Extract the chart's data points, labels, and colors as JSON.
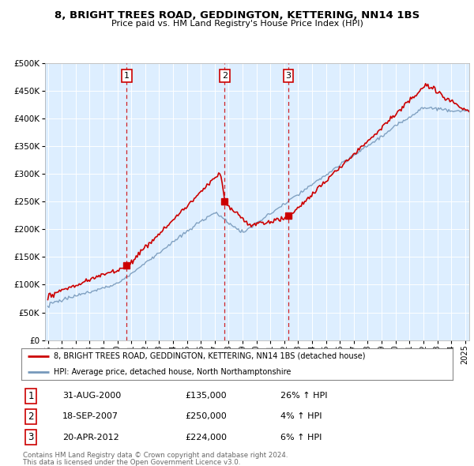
{
  "title": "8, BRIGHT TREES ROAD, GEDDINGTON, KETTERING, NN14 1BS",
  "subtitle": "Price paid vs. HM Land Registry's House Price Index (HPI)",
  "sale_label": "8, BRIGHT TREES ROAD, GEDDINGTON, KETTERING, NN14 1BS (detached house)",
  "hpi_label": "HPI: Average price, detached house, North Northamptonshire",
  "sales": [
    {
      "num": 1,
      "date": "31-AUG-2000",
      "price": 135000,
      "pct": "26%",
      "dir": "↑"
    },
    {
      "num": 2,
      "date": "18-SEP-2007",
      "price": 250000,
      "pct": "4%",
      "dir": "↑"
    },
    {
      "num": 3,
      "date": "20-APR-2012",
      "price": 224000,
      "pct": "6%",
      "dir": "↑"
    }
  ],
  "sale_years": [
    2000.67,
    2007.72,
    2012.3
  ],
  "footnote1": "Contains HM Land Registry data © Crown copyright and database right 2024.",
  "footnote2": "This data is licensed under the Open Government Licence v3.0.",
  "red_color": "#cc0000",
  "blue_color": "#7799bb",
  "bg_color": "#ddeeff",
  "ylim": [
    0,
    500000
  ],
  "yticks": [
    0,
    50000,
    100000,
    150000,
    200000,
    250000,
    300000,
    350000,
    400000,
    450000,
    500000
  ],
  "xlim_left": 1994.8,
  "xlim_right": 2025.3
}
